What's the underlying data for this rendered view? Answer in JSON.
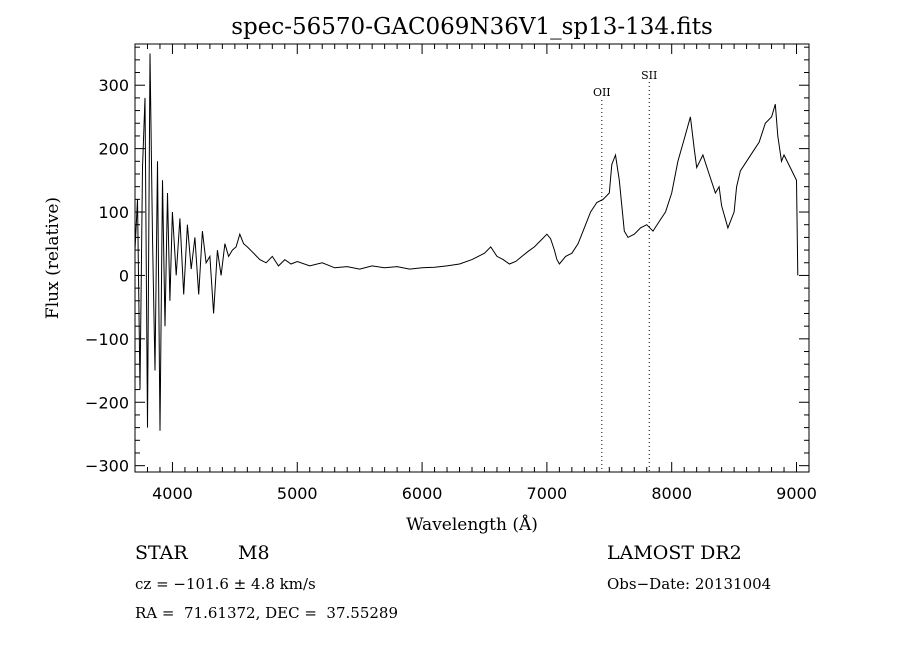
{
  "chart_data": {
    "type": "line",
    "title": "spec-56570-GAC069N36V1_sp13-134.fits",
    "xlabel": "Wavelength (Å)",
    "ylabel": "Flux (relative)",
    "xlim": [
      3700,
      9100
    ],
    "ylim": [
      -310,
      365
    ],
    "xticks": [
      4000,
      5000,
      6000,
      7000,
      8000,
      9000
    ],
    "yticks": [
      -300,
      -200,
      -100,
      0,
      100,
      200,
      300
    ],
    "grid": false,
    "line_color": "#000000",
    "lines": [
      {
        "label": "OII",
        "x": 7440
      },
      {
        "label": "SII",
        "x": 7820
      }
    ],
    "x": [
      3700,
      3720,
      3740,
      3760,
      3780,
      3800,
      3820,
      3840,
      3860,
      3880,
      3900,
      3920,
      3940,
      3960,
      3980,
      4000,
      4030,
      4060,
      4090,
      4120,
      4150,
      4180,
      4210,
      4240,
      4270,
      4300,
      4330,
      4360,
      4390,
      4420,
      4450,
      4480,
      4510,
      4540,
      4570,
      4600,
      4650,
      4700,
      4750,
      4800,
      4850,
      4900,
      4950,
      5000,
      5100,
      5200,
      5300,
      5400,
      5500,
      5600,
      5700,
      5800,
      5900,
      6000,
      6100,
      6200,
      6300,
      6400,
      6500,
      6550,
      6600,
      6650,
      6700,
      6750,
      6800,
      6850,
      6900,
      6950,
      7000,
      7030,
      7060,
      7080,
      7100,
      7150,
      7200,
      7250,
      7300,
      7350,
      7400,
      7450,
      7500,
      7520,
      7550,
      7580,
      7600,
      7620,
      7650,
      7700,
      7750,
      7800,
      7850,
      7900,
      7950,
      8000,
      8050,
      8100,
      8150,
      8180,
      8200,
      8250,
      8300,
      8350,
      8380,
      8400,
      8450,
      8500,
      8520,
      8550,
      8600,
      8650,
      8700,
      8750,
      8800,
      8830,
      8850,
      8880,
      8900,
      8950,
      9000,
      9010
    ],
    "y": [
      40,
      120,
      -180,
      170,
      280,
      -240,
      350,
      60,
      -150,
      180,
      -245,
      150,
      -80,
      130,
      -40,
      100,
      0,
      90,
      -30,
      80,
      10,
      60,
      -30,
      70,
      20,
      30,
      -60,
      40,
      0,
      50,
      30,
      40,
      45,
      65,
      50,
      45,
      35,
      25,
      20,
      30,
      15,
      25,
      18,
      22,
      15,
      20,
      12,
      14,
      10,
      15,
      12,
      14,
      10,
      12,
      13,
      15,
      18,
      25,
      35,
      45,
      30,
      25,
      18,
      22,
      30,
      38,
      45,
      55,
      65,
      58,
      40,
      25,
      18,
      30,
      35,
      50,
      75,
      100,
      115,
      120,
      130,
      175,
      190,
      150,
      110,
      70,
      60,
      65,
      75,
      80,
      70,
      85,
      100,
      130,
      180,
      215,
      250,
      200,
      170,
      190,
      160,
      130,
      140,
      110,
      75,
      100,
      140,
      165,
      180,
      195,
      210,
      240,
      250,
      270,
      220,
      180,
      190,
      170,
      150,
      0
    ]
  },
  "info": {
    "object_class": "STAR",
    "subclass": "M8",
    "survey": "LAMOST DR2",
    "cz": "cz = −101.6 ± 4.8 km/s",
    "obs_date": "Obs−Date: 20131004",
    "coords": "RA =  71.61372, DEC =  37.55289"
  }
}
